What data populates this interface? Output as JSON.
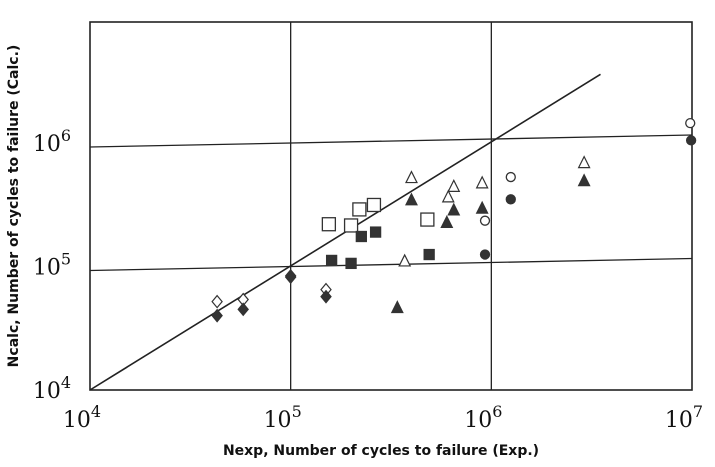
{
  "chart_data": {
    "type": "scatter",
    "title": "",
    "xlabel": "Nexp, Number of cycles to failure (Exp.)",
    "ylabel": "Ncalc, Number of cycles to failure (Calc.)",
    "x_scale": "log",
    "y_scale": "log",
    "xlim": [
      10000,
      10000000
    ],
    "ylim": [
      10000,
      10000000
    ],
    "x_ticks": [
      {
        "value": 10000,
        "base": "10",
        "exp": "4"
      },
      {
        "value": 100000,
        "base": "10",
        "exp": "5"
      },
      {
        "value": 1000000,
        "base": "10",
        "exp": "6"
      },
      {
        "value": 10000000,
        "base": "10",
        "exp": "7"
      }
    ],
    "y_ticks": [
      {
        "value": 10000,
        "base": "10",
        "exp": "4"
      },
      {
        "value": 100000,
        "base": "10",
        "exp": "5"
      },
      {
        "value": 1000000,
        "base": "10",
        "exp": "6"
      }
    ],
    "grid": true,
    "reference_line": {
      "from": [
        10000,
        10000
      ],
      "to": [
        3500000,
        3600000
      ]
    },
    "series": [
      {
        "marker": "diamond-open",
        "color": "#333333",
        "points": [
          [
            43000,
            52000
          ],
          [
            58000,
            54000
          ],
          [
            100000,
            84000
          ],
          [
            150000,
            65000
          ]
        ]
      },
      {
        "marker": "diamond-filled",
        "color": "#333333",
        "points": [
          [
            43000,
            40000
          ],
          [
            58000,
            45000
          ],
          [
            100000,
            82000
          ],
          [
            150000,
            57000
          ]
        ]
      },
      {
        "marker": "square-open",
        "color": "#333333",
        "points": [
          [
            155000,
            220000
          ],
          [
            200000,
            215000
          ],
          [
            220000,
            290000
          ],
          [
            260000,
            315000
          ],
          [
            480000,
            240000
          ]
        ]
      },
      {
        "marker": "square-filled",
        "color": "#333333",
        "points": [
          [
            160000,
            112000
          ],
          [
            200000,
            106000
          ],
          [
            225000,
            175000
          ],
          [
            265000,
            190000
          ],
          [
            490000,
            125000
          ]
        ]
      },
      {
        "marker": "triangle-open",
        "color": "#333333",
        "points": [
          [
            370000,
            112000
          ],
          [
            400000,
            530000
          ],
          [
            650000,
            450000
          ],
          [
            610000,
            370000
          ],
          [
            900000,
            480000
          ],
          [
            2900000,
            700000
          ]
        ]
      },
      {
        "marker": "triangle-filled",
        "color": "#333333",
        "points": [
          [
            340000,
            47000
          ],
          [
            400000,
            350000
          ],
          [
            600000,
            230000
          ],
          [
            650000,
            290000
          ],
          [
            900000,
            300000
          ],
          [
            2900000,
            500000
          ]
        ]
      },
      {
        "marker": "circle-open",
        "color": "#333333",
        "points": [
          [
            930000,
            235000
          ],
          [
            1250000,
            530000
          ],
          [
            9800000,
            1450000
          ]
        ]
      },
      {
        "marker": "circle-filled",
        "color": "#333333",
        "points": [
          [
            930000,
            125000
          ],
          [
            1250000,
            350000
          ],
          [
            9900000,
            1050000
          ]
        ]
      }
    ]
  }
}
